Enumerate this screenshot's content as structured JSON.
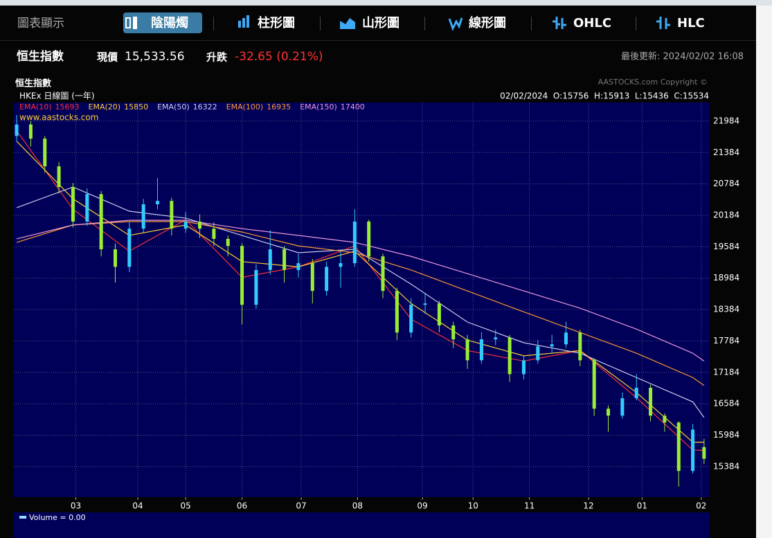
{
  "tabs": [
    "圖表顯示",
    "陰陽燭",
    "柱形圖",
    "山形圖",
    "線形圖",
    "OHLC",
    "HLC"
  ],
  "active_tab": 1,
  "quote": {
    "name": "恒生指數",
    "price_label": "現價",
    "price": "15,533.56",
    "change_label": "升跌",
    "change": "-32.65 (0.21%)",
    "updated": "最後更新: 2024/02/02 16:08"
  },
  "chart_data": {
    "type": "candlestick",
    "title": "恒生指數",
    "subtitle": "HKEx 日線圖 (一年)",
    "copyright": "AASTOCKS.com Copyright ©",
    "watermark": "www.aastocks.com",
    "ohlc_text": "02/02/2024  O:15756  H:15913  L:15436  C:15534",
    "volume_label": "Volume = 0.00",
    "up_color": "#33ccff",
    "down_color": "#99ee33",
    "grid": true,
    "xlim": [
      -1,
      246
    ],
    "ylim": [
      14800,
      22340
    ],
    "xticks": [
      {
        "value": 21,
        "label": "03"
      },
      {
        "value": 43,
        "label": "04"
      },
      {
        "value": 60,
        "label": "05"
      },
      {
        "value": 80,
        "label": "06"
      },
      {
        "value": 101,
        "label": "07"
      },
      {
        "value": 121,
        "label": "08"
      },
      {
        "value": 144,
        "label": "09"
      },
      {
        "value": 162,
        "label": "10"
      },
      {
        "value": 182,
        "label": "11"
      },
      {
        "value": 203,
        "label": "12"
      },
      {
        "value": 222,
        "label": "01"
      },
      {
        "value": 243,
        "label": "02"
      }
    ],
    "yticks": [
      21984,
      21384,
      20784,
      20184,
      19584,
      18984,
      18384,
      17784,
      17184,
      16584,
      15984,
      15384
    ],
    "candles": {
      "x": [
        0,
        5,
        10,
        15,
        20,
        25,
        30,
        35,
        40,
        45,
        50,
        55,
        60,
        65,
        70,
        75,
        80,
        85,
        90,
        95,
        100,
        105,
        110,
        115,
        120,
        125,
        130,
        135,
        140,
        145,
        150,
        155,
        160,
        165,
        170,
        175,
        180,
        185,
        190,
        195,
        200,
        205,
        210,
        215,
        220,
        225,
        230,
        235,
        240,
        244
      ],
      "open": [
        21700,
        21920,
        21650,
        21120,
        20725,
        20065,
        20590,
        19535,
        19200,
        19930,
        20395,
        20460,
        19930,
        20065,
        19930,
        19735,
        19600,
        18475,
        19140,
        19535,
        19140,
        19270,
        18740,
        19200,
        19270,
        20065,
        19400,
        18740,
        17945,
        18475,
        18500,
        18080,
        17815,
        17415,
        17815,
        17850,
        17150,
        17415,
        17680,
        17720,
        17945,
        17415,
        16490,
        16357,
        16690,
        16890,
        16357,
        16225,
        15300,
        15756
      ],
      "high": [
        22100,
        21980,
        21700,
        21200,
        20800,
        20700,
        20650,
        19650,
        20050,
        20500,
        20900,
        20520,
        20250,
        20200,
        20050,
        19800,
        19650,
        19250,
        19900,
        19600,
        19450,
        19350,
        19300,
        19500,
        20300,
        20100,
        19450,
        18800,
        18600,
        18700,
        18550,
        18150,
        17900,
        17950,
        18000,
        17900,
        17500,
        17800,
        17900,
        18150,
        18000,
        17450,
        16550,
        16800,
        17150,
        16950,
        16400,
        16250,
        16200,
        15913
      ],
      "low": [
        21600,
        21500,
        21000,
        20600,
        19950,
        19980,
        19400,
        18900,
        19100,
        19850,
        20300,
        19800,
        19850,
        19750,
        19600,
        19400,
        18100,
        18400,
        19050,
        18900,
        19000,
        18500,
        18650,
        18800,
        19200,
        19300,
        18600,
        17800,
        17850,
        18300,
        17950,
        17650,
        17250,
        17350,
        17700,
        17000,
        17050,
        17350,
        17550,
        17650,
        17300,
        16350,
        16050,
        16300,
        16650,
        16250,
        16050,
        15000,
        15250,
        15436
      ],
      "close": [
        21920,
        21650,
        21120,
        20725,
        20065,
        20590,
        19535,
        19200,
        19930,
        20395,
        20460,
        19930,
        20065,
        19930,
        19735,
        19600,
        18475,
        19140,
        19535,
        19140,
        19270,
        18740,
        19200,
        19270,
        20065,
        19400,
        18740,
        17945,
        18475,
        18500,
        18080,
        17815,
        17415,
        17815,
        17850,
        17150,
        17415,
        17680,
        17720,
        17945,
        17415,
        16490,
        16357,
        16690,
        16890,
        16357,
        16225,
        15300,
        16090,
        15534
      ]
    },
    "x": [
      0,
      20,
      40,
      60,
      80,
      100,
      120,
      140,
      160,
      180,
      200,
      220,
      240,
      244
    ],
    "series": [
      {
        "name": "EMA(10)",
        "legend_value": 15693,
        "color": "#ff3030",
        "values": [
          21800,
          20300,
          19500,
          20100,
          19000,
          19200,
          19600,
          18200,
          17600,
          17400,
          17600,
          16700,
          15700,
          15693
        ]
      },
      {
        "name": "EMA(20)",
        "legend_value": 15850,
        "color": "#ffcc33",
        "values": [
          21600,
          20500,
          19800,
          20000,
          19300,
          19200,
          19500,
          18500,
          17800,
          17500,
          17600,
          16800,
          15850,
          15850
        ]
      },
      {
        "name": "EMA(50)",
        "legend_value": 16322,
        "color": "#ccccee",
        "values": [
          20330,
          20725,
          20263,
          20130,
          19800,
          19470,
          19535,
          18870,
          18145,
          17750,
          17550,
          17085,
          16620,
          16322
        ]
      },
      {
        "name": "EMA(100)",
        "legend_value": 16935,
        "color": "#ff9933",
        "values": [
          19667,
          20000,
          20065,
          20065,
          19865,
          19600,
          19470,
          19140,
          18740,
          18340,
          17945,
          17550,
          17085,
          16935
        ]
      },
      {
        "name": "EMA(150)",
        "legend_value": 17400,
        "color": "#ee99dd",
        "values": [
          19735,
          20000,
          20090,
          20090,
          19930,
          19800,
          19667,
          19400,
          19070,
          18740,
          18410,
          18010,
          17550,
          17400
        ]
      }
    ]
  }
}
